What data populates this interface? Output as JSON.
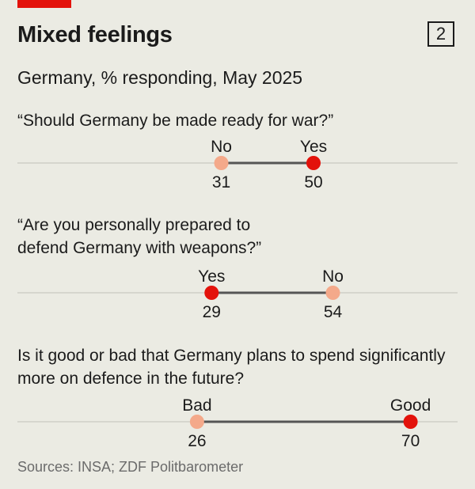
{
  "header": {
    "title": "Mixed feelings",
    "chart_number": "2",
    "subtitle": "Germany, % responding, May 2025"
  },
  "source": "Sources: INSA; ZDF Politbarometer",
  "colors": {
    "accent_red": "#e3120b",
    "dot_dark": "#e3120b",
    "dot_light": "#f4a98a",
    "connector": "#555555",
    "axis_line": "#c9c9c2"
  },
  "chart_data": {
    "type": "dot",
    "unit": "% responding",
    "questions": [
      {
        "question": "“Should Germany be made ready for war?”",
        "points": [
          {
            "label": "No",
            "value": 31,
            "color": "light"
          },
          {
            "label": "Yes",
            "value": 50,
            "color": "dark"
          }
        ]
      },
      {
        "question": "“Are you personally prepared to defend Germany with weapons?”",
        "points": [
          {
            "label": "Yes",
            "value": 29,
            "color": "dark"
          },
          {
            "label": "No",
            "value": 54,
            "color": "light"
          }
        ]
      },
      {
        "question": "Is it good or bad that Germany plans to spend significantly more on defence in the future?",
        "points": [
          {
            "label": "Bad",
            "value": 26,
            "color": "light"
          },
          {
            "label": "Good",
            "value": 70,
            "color": "dark"
          }
        ]
      }
    ]
  }
}
